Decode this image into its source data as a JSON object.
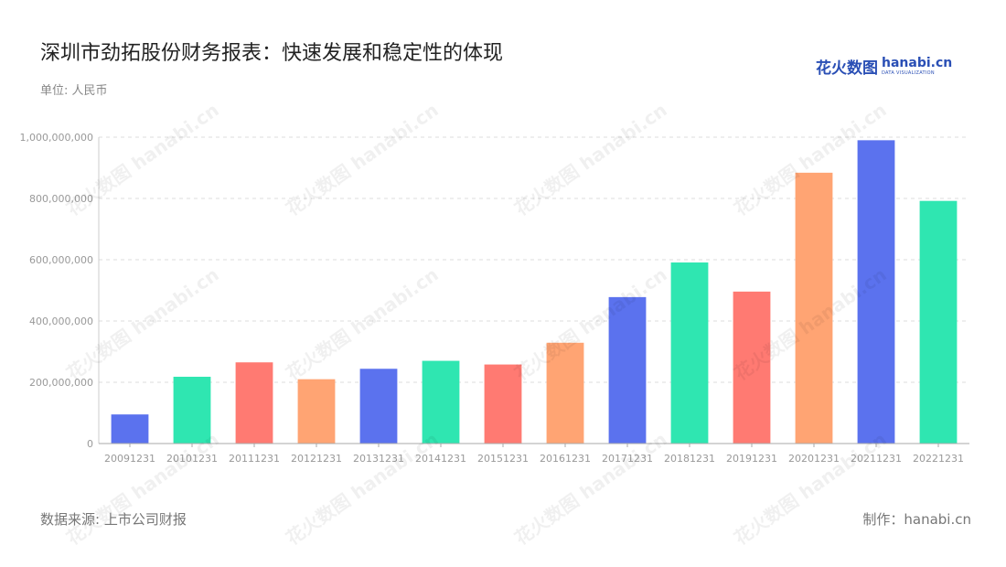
{
  "title": "深圳市劲拓股份财务报表：快速发展和稳定性的体现",
  "unit": "单位: 人民币",
  "logo": {
    "cn": "花火数图",
    "en": "hanabi.cn",
    "sub": "DATA VISUALIZATION"
  },
  "watermark_text": "花火数图 hanabi.cn",
  "footer": {
    "source": "数据来源: 上市公司财报",
    "credit": "制作：hanabi.cn"
  },
  "chart_data": {
    "type": "bar",
    "categories": [
      "20091231",
      "20101231",
      "20111231",
      "20121231",
      "20131231",
      "20141231",
      "20151231",
      "20161231",
      "20171231",
      "20181231",
      "20191231",
      "20201231",
      "20211231",
      "20221231"
    ],
    "values": [
      95000000,
      218000000,
      265000000,
      210000000,
      244000000,
      270000000,
      258000000,
      329000000,
      478000000,
      591000000,
      496000000,
      884000000,
      990000000,
      792000000
    ],
    "colors": [
      "#5b72ee",
      "#2fe6b1",
      "#ff7a72",
      "#ffa473",
      "#5b72ee",
      "#2fe6b1",
      "#ff7a72",
      "#ffa473",
      "#5b72ee",
      "#2fe6b1",
      "#ff7a72",
      "#ffa473",
      "#5b72ee",
      "#2fe6b1"
    ],
    "ylim": [
      0,
      1000000000
    ],
    "yticks": [
      0,
      200000000,
      400000000,
      600000000,
      800000000,
      1000000000
    ],
    "ytick_labels": [
      "0",
      "200,000,000",
      "400,000,000",
      "600,000,000",
      "800,000,000",
      "1,000,000,000"
    ],
    "grid": true,
    "xlabel": "",
    "ylabel": ""
  }
}
